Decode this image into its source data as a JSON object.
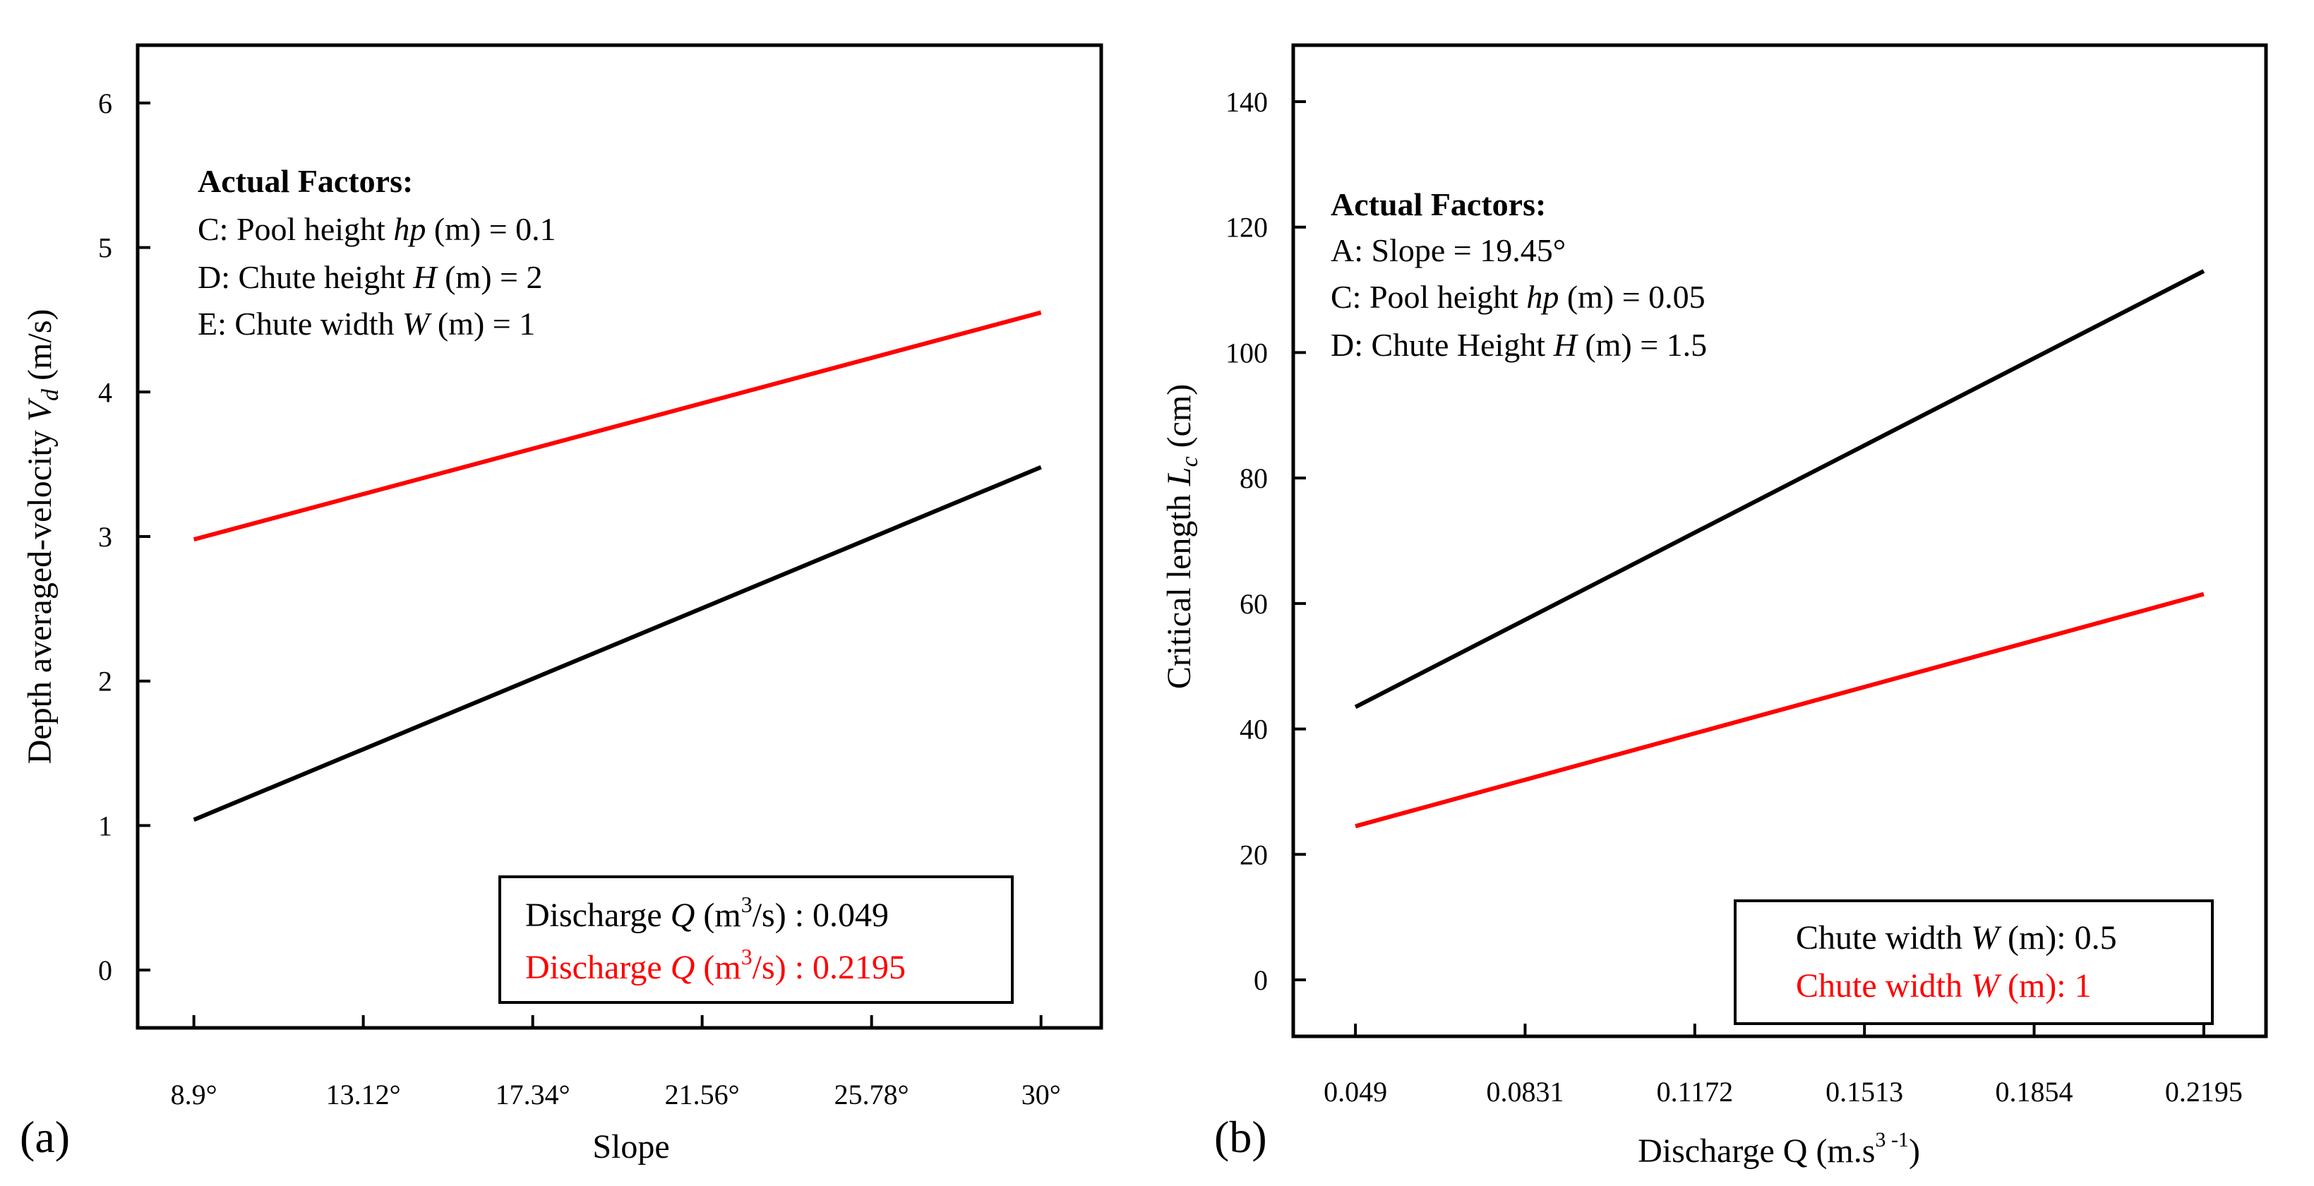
{
  "chart_data": [
    {
      "panel": "(a)",
      "type": "line",
      "xlabel": "Slope",
      "ylabel_main": "Depth averaged-velocity ",
      "ylabel_symbol": "V",
      "ylabel_sub": "d",
      "ylabel_unit": " (m/s)",
      "x_tick_labels": [
        "8.9°",
        "13.12°",
        "17.34°",
        "21.56°",
        "25.78°",
        "30°"
      ],
      "x_ticks": [
        8.9,
        13.12,
        17.34,
        21.56,
        25.78,
        30
      ],
      "xlim": [
        7.5,
        31.5
      ],
      "y_tick_labels": [
        "0",
        "1",
        "2",
        "3",
        "4",
        "5",
        "6"
      ],
      "y_ticks": [
        0,
        1,
        2,
        3,
        4,
        5,
        6
      ],
      "ylim": [
        -0.4,
        6.4
      ],
      "grid": false,
      "legend_position": "bottom-right",
      "factors_title": "Actual Factors:",
      "factors": [
        {
          "prefix": "C: Pool height ",
          "symbol": "hp",
          "suffix": " (m) = 0.1"
        },
        {
          "prefix": "D: Chute height ",
          "symbol": "H",
          "suffix": " (m) = 2"
        },
        {
          "prefix": "E: Chute width ",
          "symbol": "W",
          "suffix": " (m) = 1"
        }
      ],
      "series": [
        {
          "name": "Discharge Q (m3/s) : 0.049",
          "legend_prefix": "Discharge ",
          "legend_symbol": "Q",
          "legend_unit": " (m",
          "legend_sup": "3",
          "legend_value": "/s) : 0.049",
          "color": "#000000",
          "x": [
            8.9,
            30
          ],
          "y": [
            1.04,
            3.48
          ]
        },
        {
          "name": "Discharge Q (m3/s) : 0.2195",
          "legend_prefix": "Discharge ",
          "legend_symbol": "Q",
          "legend_unit": " (m",
          "legend_sup": "3",
          "legend_value": "/s) : 0.2195",
          "color": "#ff0000",
          "x": [
            8.9,
            30
          ],
          "y": [
            2.98,
            4.55
          ]
        }
      ]
    },
    {
      "panel": "(b)",
      "type": "line",
      "xlabel": "Discharge Q (m.s",
      "xlabel_sup": "3 -1",
      "xlabel_close": ")",
      "ylabel_main": "Critical length ",
      "ylabel_symbol": "L",
      "ylabel_sub": "c",
      "ylabel_unit": " (cm)",
      "x_tick_labels": [
        "0.049",
        "0.0831",
        "0.1172",
        "0.1513",
        "0.1854",
        "0.2195"
      ],
      "x_ticks": [
        0.049,
        0.0831,
        0.1172,
        0.1513,
        0.1854,
        0.2195
      ],
      "xlim": [
        0.0365,
        0.232
      ],
      "y_tick_labels": [
        "0",
        "20",
        "40",
        "60",
        "80",
        "100",
        "120",
        "140"
      ],
      "y_ticks": [
        0,
        20,
        40,
        60,
        80,
        100,
        120,
        140
      ],
      "ylim": [
        -9,
        149
      ],
      "grid": false,
      "legend_position": "bottom-right",
      "factors_title": "Actual Factors:",
      "factors": [
        {
          "prefix": "A: Slope  = ",
          "symbol": "",
          "suffix": "19.45°"
        },
        {
          "prefix": "C: Pool height ",
          "symbol": "hp",
          "suffix": " (m) = 0.05"
        },
        {
          "prefix": "D: Chute Height ",
          "symbol": "H",
          "suffix": " (m)   = 1.5"
        }
      ],
      "series": [
        {
          "name": "Chute width W (m): 0.5",
          "legend_prefix": "Chute width ",
          "legend_symbol": "W",
          "legend_value": " (m): 0.5",
          "color": "#000000",
          "x": [
            0.049,
            0.2195
          ],
          "y": [
            43.5,
            113
          ]
        },
        {
          "name": "Chute width W (m): 1",
          "legend_prefix": "Chute width ",
          "legend_symbol": "W",
          "legend_value": " (m): 1",
          "color": "#ff0000",
          "x": [
            0.049,
            0.2195
          ],
          "y": [
            24.5,
            61.5
          ]
        }
      ]
    }
  ]
}
